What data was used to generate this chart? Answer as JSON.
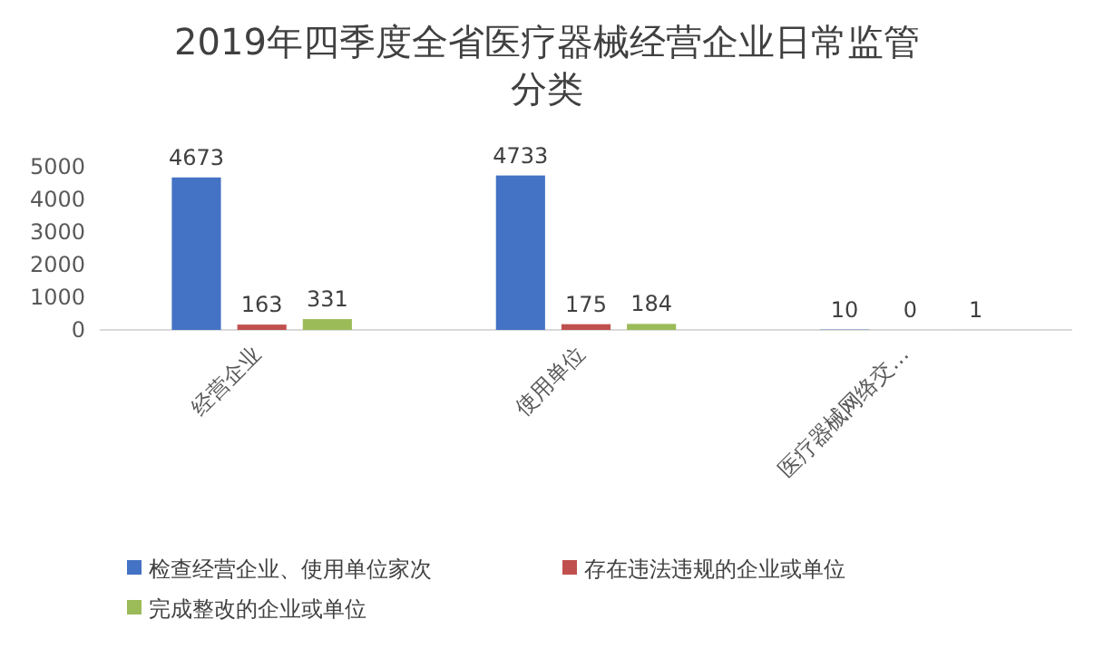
{
  "chart_data": {
    "type": "bar",
    "title": "2019年四季度全省医疗器械经营企业日常监管分类",
    "categories": [
      "经营企业",
      "使用单位",
      "医疗器械网络交…"
    ],
    "series": [
      {
        "name": "检查经营企业、使用单位家次",
        "color": "#4472c4",
        "values": [
          4673,
          4733,
          10
        ]
      },
      {
        "name": "存在违法违规的企业或单位",
        "color": "#c0504d",
        "values": [
          163,
          175,
          0
        ]
      },
      {
        "name": "完成整改的企业或单位",
        "color": "#9bbb59",
        "values": [
          331,
          184,
          1
        ]
      }
    ],
    "ylim": [
      0,
      5000
    ],
    "yticks": [
      0,
      1000,
      2000,
      3000,
      4000,
      5000
    ],
    "data_labels": true,
    "legend": "bottom",
    "grid": false
  }
}
